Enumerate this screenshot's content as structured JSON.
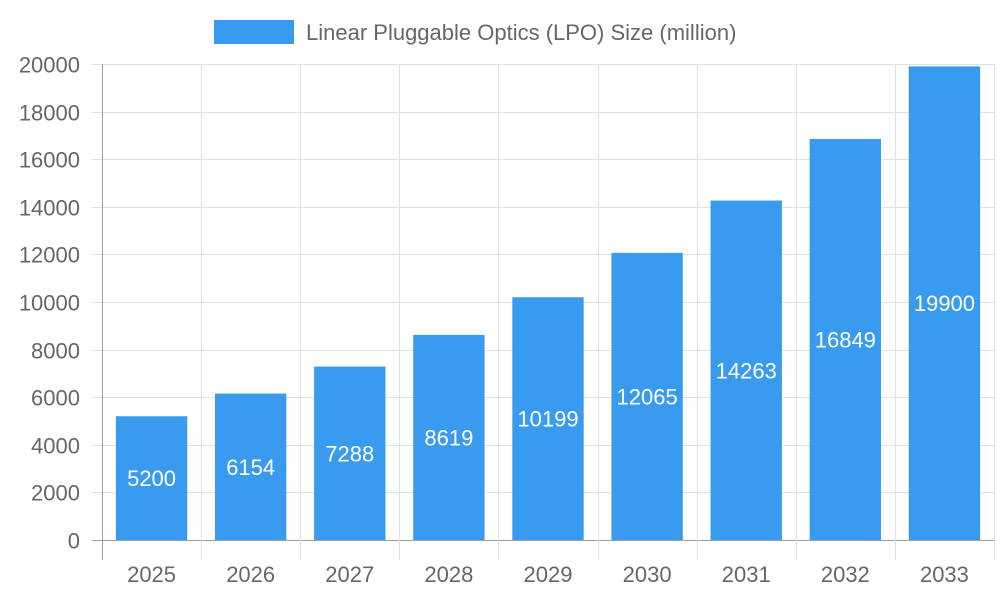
{
  "chart_data": {
    "type": "bar",
    "title": "",
    "xlabel": "",
    "ylabel": "",
    "categories": [
      "2025",
      "2026",
      "2027",
      "2028",
      "2029",
      "2030",
      "2031",
      "2032",
      "2033"
    ],
    "series": [
      {
        "name": "Linear Pluggable Optics (LPO) Size (million)",
        "values": [
          5200,
          6154,
          7288,
          8619,
          10199,
          12065,
          14263,
          16849,
          19900
        ]
      }
    ],
    "ylim": [
      0,
      20000
    ],
    "yticks": [
      0,
      2000,
      4000,
      6000,
      8000,
      10000,
      12000,
      14000,
      16000,
      18000,
      20000
    ],
    "grid": true,
    "legend_position": "top-center",
    "data_labels": true,
    "colors": {
      "bar": "#399bef",
      "grid": "#e0e0e0",
      "axis": "#a0a0a0",
      "text": "#666666",
      "label": "#ffffff"
    }
  }
}
